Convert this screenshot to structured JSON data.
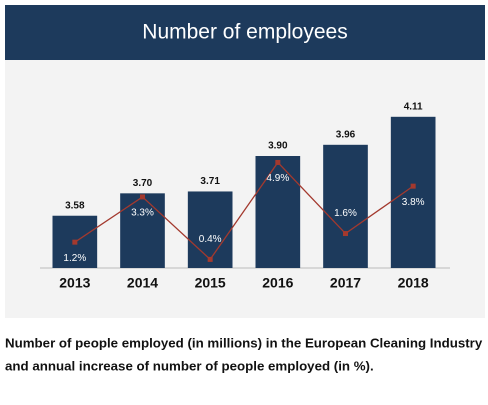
{
  "chart_data": {
    "type": "bar",
    "title": "Number of employees",
    "categories": [
      "2013",
      "2014",
      "2015",
      "2016",
      "2017",
      "2018"
    ],
    "series": [
      {
        "name": "Number of people employed (in millions)",
        "type": "bar",
        "color": "#1d3a5c",
        "values": [
          3.58,
          3.7,
          3.71,
          3.9,
          3.96,
          4.11
        ],
        "value_labels": [
          "3.58",
          "3.70",
          "3.71",
          "3.90",
          "3.96",
          "4.11"
        ]
      },
      {
        "name": "Annual increase (in %)",
        "type": "line",
        "axis": "y2",
        "color": "#a3392e",
        "values": [
          1.2,
          3.3,
          0.4,
          4.9,
          1.6,
          3.8
        ],
        "value_labels": [
          "1.2%",
          "3.3%",
          "0.4%",
          "4.9%",
          "1.6%",
          "3.8%"
        ]
      }
    ],
    "ylim": [
      3.3,
      4.2
    ],
    "y2lim": [
      0,
      7.8
    ],
    "caption": [
      "Number of people employed (in millions) in the European Cleaning Industry",
      "and annual increase of number of people employed (in %)."
    ]
  }
}
